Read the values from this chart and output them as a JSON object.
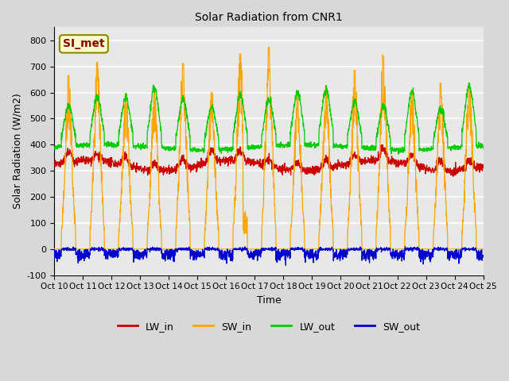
{
  "title": "Solar Radiation from CNR1",
  "xlabel": "Time",
  "ylabel": "Solar Radiation (W/m2)",
  "ylim": [
    -100,
    850
  ],
  "yticks": [
    -100,
    0,
    100,
    200,
    300,
    400,
    500,
    600,
    700,
    800
  ],
  "xtick_labels": [
    "Oct 10",
    "Oct 11",
    "Oct 12",
    "Oct 13",
    "Oct 14",
    "Oct 15",
    "Oct 16",
    "Oct 17",
    "Oct 18",
    "Oct 19",
    "Oct 20",
    "Oct 21",
    "Oct 22",
    "Oct 23",
    "Oct 24",
    "Oct 25"
  ],
  "annotation_text": "SI_met",
  "annotation_bg": "#ffffcc",
  "annotation_border": "#888800",
  "annotation_text_color": "#8b0000",
  "colors": {
    "LW_in": "#cc0000",
    "SW_in": "#ffa500",
    "LW_out": "#00cc00",
    "SW_out": "#0000cc"
  },
  "legend_labels": [
    "LW_in",
    "SW_in",
    "LW_out",
    "SW_out"
  ],
  "n_days": 15,
  "samples_per_day": 144
}
